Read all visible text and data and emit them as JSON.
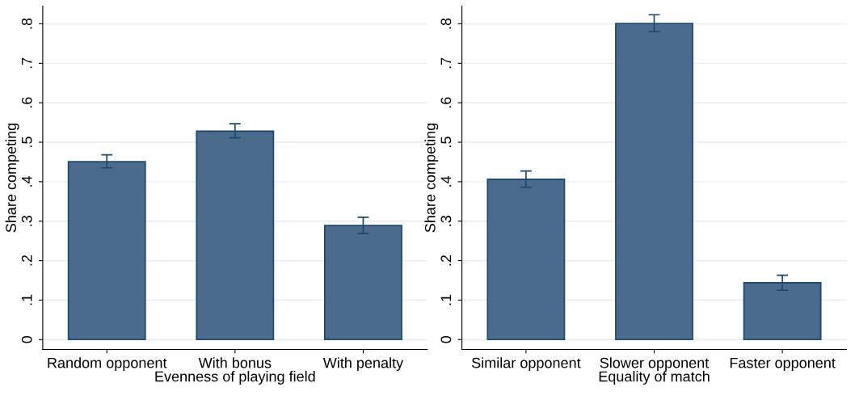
{
  "chart_data": [
    {
      "type": "bar",
      "xlabel": "Evenness of playing field",
      "ylabel": "Share competing",
      "categories": [
        "Random opponent",
        "With bonus",
        "With penalty"
      ],
      "values": [
        0.451,
        0.528,
        0.289
      ],
      "errors": [
        [
          0.435,
          0.468
        ],
        [
          0.511,
          0.547
        ],
        [
          0.269,
          0.31
        ]
      ],
      "color": "#4a6b8c",
      "ylim": [
        -0.025,
        0.845
      ],
      "yticks": [
        {
          "value": 0,
          "label": "0"
        },
        {
          "value": 0.1,
          "label": ".1"
        },
        {
          "value": 0.2,
          "label": ".2"
        },
        {
          "value": 0.3,
          "label": ".3"
        },
        {
          "value": 0.4,
          "label": ".4"
        },
        {
          "value": 0.5,
          "label": ".5"
        },
        {
          "value": 0.6,
          "label": ".6"
        },
        {
          "value": 0.7,
          "label": ".7"
        },
        {
          "value": 0.8,
          "label": ".8"
        }
      ],
      "grid": "y"
    },
    {
      "type": "bar",
      "xlabel": "Equality of match",
      "ylabel": "Share competing",
      "categories": [
        "Similar opponent",
        "Slower opponent",
        "Faster opponent"
      ],
      "values": [
        0.406,
        0.801,
        0.144
      ],
      "errors": [
        [
          0.386,
          0.427
        ],
        [
          0.78,
          0.823
        ],
        [
          0.125,
          0.163
        ]
      ],
      "color": "#4a6b8c",
      "ylim": [
        -0.025,
        0.845
      ],
      "yticks": [
        {
          "value": 0,
          "label": "0"
        },
        {
          "value": 0.1,
          "label": ".1"
        },
        {
          "value": 0.2,
          "label": ".2"
        },
        {
          "value": 0.3,
          "label": ".3"
        },
        {
          "value": 0.4,
          "label": ".4"
        },
        {
          "value": 0.5,
          "label": ".5"
        },
        {
          "value": 0.6,
          "label": ".6"
        },
        {
          "value": 0.7,
          "label": ".7"
        },
        {
          "value": 0.8,
          "label": ".8"
        }
      ],
      "grid": "y"
    }
  ]
}
